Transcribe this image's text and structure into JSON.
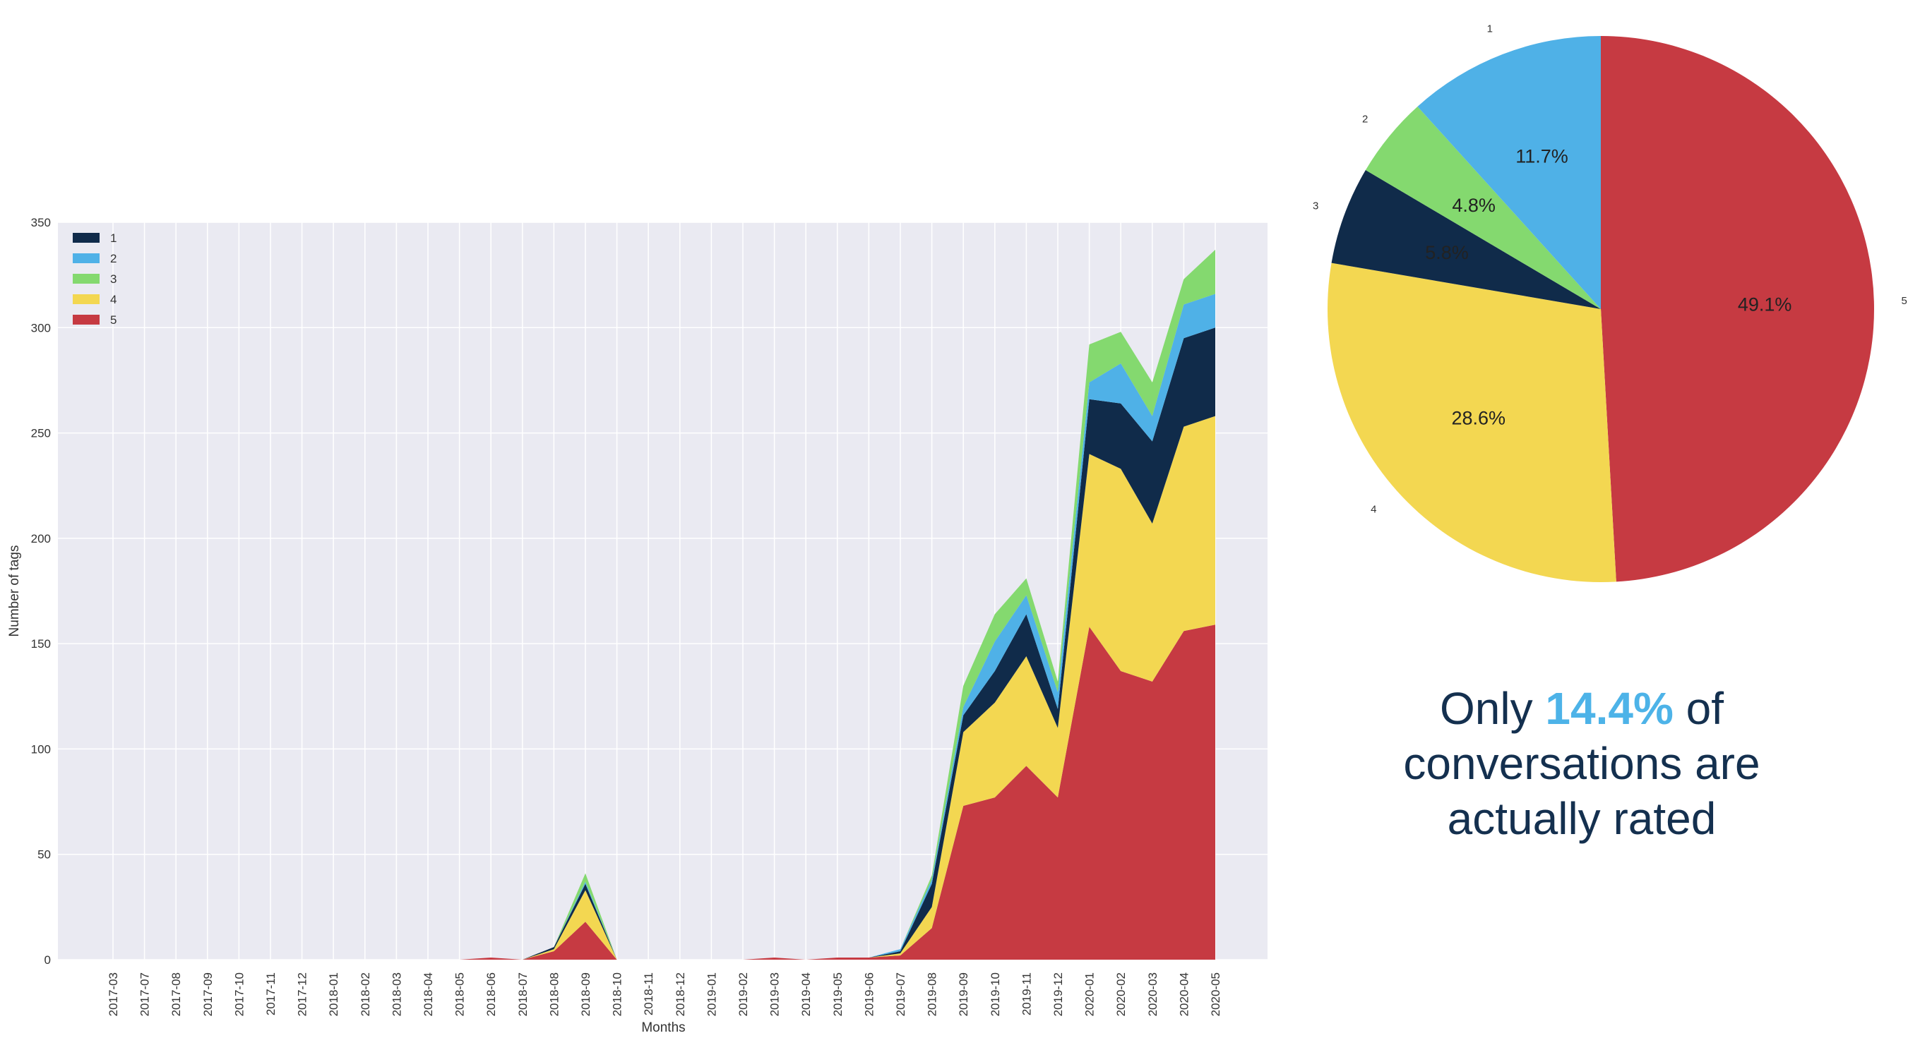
{
  "chart_data": [
    {
      "type": "area",
      "stacked": true,
      "xlabel": "Months",
      "ylabel": "Number of tags",
      "ylim": [
        0,
        350
      ],
      "yticks": [
        0,
        50,
        100,
        150,
        200,
        250,
        300,
        350
      ],
      "grid": true,
      "legend_position": "top-left",
      "categories": [
        "2017-03",
        "2017-07",
        "2017-08",
        "2017-09",
        "2017-10",
        "2017-11",
        "2017-12",
        "2018-01",
        "2018-02",
        "2018-03",
        "2018-04",
        "2018-05",
        "2018-06",
        "2018-07",
        "2018-08",
        "2018-09",
        "2018-10",
        "2018-11",
        "2018-12",
        "2019-01",
        "2019-02",
        "2019-03",
        "2019-04",
        "2019-05",
        "2019-06",
        "2019-07",
        "2019-08",
        "2019-09",
        "2019-10",
        "2019-11",
        "2019-12",
        "2020-01",
        "2020-02",
        "2020-03",
        "2020-04",
        "2020-05"
      ],
      "series": [
        {
          "name": "5",
          "color": "#c63a42",
          "values": [
            0,
            0,
            0,
            0,
            0,
            0,
            0,
            0,
            0,
            0,
            0,
            0,
            1,
            0,
            4,
            18,
            0,
            0,
            0,
            0,
            0,
            1,
            0,
            1,
            1,
            2,
            15,
            73,
            77,
            92,
            77,
            158,
            137,
            132,
            156,
            159
          ]
        },
        {
          "name": "4",
          "color": "#f3d751",
          "values": [
            0,
            0,
            0,
            0,
            0,
            0,
            0,
            0,
            0,
            0,
            0,
            0,
            0,
            0,
            1,
            15,
            0,
            0,
            0,
            0,
            0,
            0,
            0,
            0,
            0,
            1,
            10,
            35,
            45,
            52,
            33,
            82,
            96,
            75,
            97,
            99
          ]
        },
        {
          "name": "3",
          "color": "#102b4a",
          "values": [
            0,
            0,
            0,
            0,
            0,
            0,
            0,
            0,
            0,
            0,
            0,
            0,
            0,
            0,
            1,
            3,
            0,
            0,
            0,
            0,
            0,
            0,
            0,
            0,
            0,
            1,
            11,
            8,
            15,
            20,
            9,
            26,
            31,
            39,
            42,
            42
          ]
        },
        {
          "name": "2",
          "color": "#4fb1e7",
          "values": [
            0,
            0,
            0,
            0,
            0,
            0,
            0,
            0,
            0,
            0,
            0,
            0,
            0,
            0,
            0,
            1,
            0,
            0,
            0,
            0,
            0,
            0,
            0,
            0,
            0,
            1,
            2,
            4,
            14,
            9,
            8,
            8,
            19,
            12,
            16,
            16
          ]
        },
        {
          "name": "1",
          "color": "#84d96f",
          "values": [
            0,
            0,
            0,
            0,
            0,
            0,
            0,
            0,
            0,
            0,
            0,
            0,
            0,
            0,
            0,
            4,
            0,
            0,
            0,
            0,
            0,
            0,
            0,
            0,
            0,
            0,
            2,
            10,
            13,
            8,
            5,
            18,
            15,
            16,
            12,
            21
          ]
        }
      ],
      "legend_entries": [
        {
          "name": "1",
          "color": "#102b4a"
        },
        {
          "name": "2",
          "color": "#4fb1e7"
        },
        {
          "name": "3",
          "color": "#84d96f"
        },
        {
          "name": "4",
          "color": "#f3d751"
        },
        {
          "name": "5",
          "color": "#c63a42"
        }
      ]
    },
    {
      "type": "pie",
      "slices": [
        {
          "label": "5",
          "value": 49.1,
          "pct_label": "49.1%",
          "color": "#c63a42"
        },
        {
          "label": "4",
          "value": 28.6,
          "pct_label": "28.6%",
          "color": "#f3d751"
        },
        {
          "label": "3",
          "value": 5.8,
          "pct_label": "5.8%",
          "color": "#102b4a"
        },
        {
          "label": "2",
          "value": 4.8,
          "pct_label": "4.8%",
          "color": "#84d96f"
        },
        {
          "label": "1",
          "value": 11.7,
          "pct_label": "11.7%",
          "color": "#4fb1e7"
        }
      ]
    }
  ],
  "headline": {
    "before": "Only ",
    "highlight": "14.4%",
    "after": " of conversations are actually rated"
  }
}
